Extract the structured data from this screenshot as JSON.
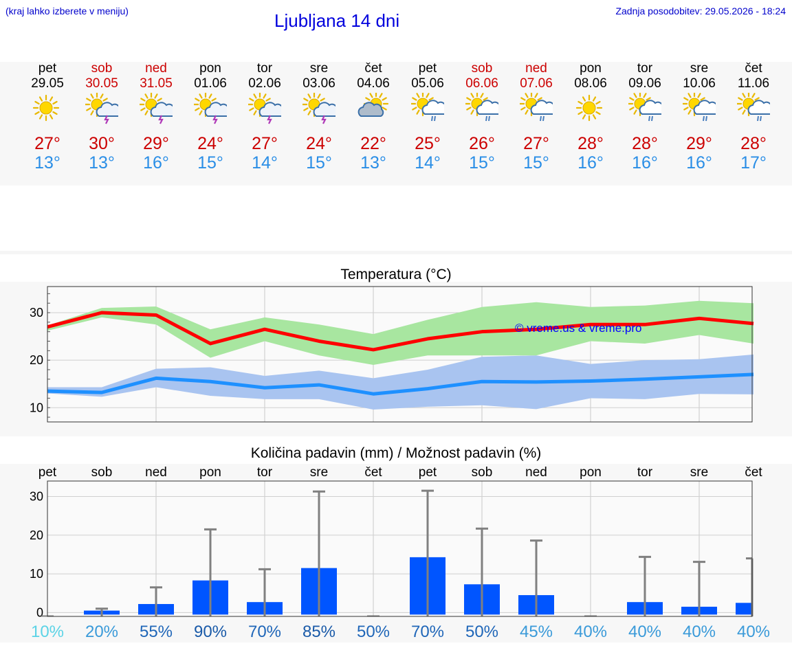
{
  "header": {
    "hint": "(kraj lahko izberete v meniju)",
    "title": "Ljubljana 14 dni",
    "last_update": "Zadnja posodobitev: 29.05.2026 - 18:24"
  },
  "colors": {
    "weekday": "#000000",
    "weekend": "#cc0000",
    "tmax_line": "#ff0000",
    "tmax_band": "#a8e6a0",
    "tmin_line": "#1e90ff",
    "tmin_band": "#a9c4f0",
    "precip_bar": "#0055ff",
    "error_bar": "#808080"
  },
  "days": [
    {
      "name": "pet",
      "date": "29.05",
      "weekend": false,
      "icon": "sun-icon",
      "tmax": "27°",
      "tmin": "13°"
    },
    {
      "name": "sob",
      "date": "30.05",
      "weekend": true,
      "icon": "sun-cloud-thunder-icon",
      "tmax": "30°",
      "tmin": "13°"
    },
    {
      "name": "ned",
      "date": "31.05",
      "weekend": true,
      "icon": "sun-cloud-thunder-icon",
      "tmax": "29°",
      "tmin": "16°"
    },
    {
      "name": "pon",
      "date": "01.06",
      "weekend": false,
      "icon": "sun-cloud-thunder-icon",
      "tmax": "24°",
      "tmin": "15°"
    },
    {
      "name": "tor",
      "date": "02.06",
      "weekend": false,
      "icon": "sun-cloud-thunder-icon",
      "tmax": "27°",
      "tmin": "14°"
    },
    {
      "name": "sre",
      "date": "03.06",
      "weekend": false,
      "icon": "sun-cloud-thunder-icon",
      "tmax": "24°",
      "tmin": "15°"
    },
    {
      "name": "čet",
      "date": "04.06",
      "weekend": false,
      "icon": "sun-behind-cloud-icon",
      "tmax": "22°",
      "tmin": "13°"
    },
    {
      "name": "pet",
      "date": "05.06",
      "weekend": false,
      "icon": "sun-cloud-rain-icon",
      "tmax": "25°",
      "tmin": "14°"
    },
    {
      "name": "sob",
      "date": "06.06",
      "weekend": true,
      "icon": "sun-cloud-rain-icon",
      "tmax": "26°",
      "tmin": "15°"
    },
    {
      "name": "ned",
      "date": "07.06",
      "weekend": true,
      "icon": "sun-cloud-rain-icon",
      "tmax": "27°",
      "tmin": "15°"
    },
    {
      "name": "pon",
      "date": "08.06",
      "weekend": false,
      "icon": "sun-icon",
      "tmax": "28°",
      "tmin": "16°"
    },
    {
      "name": "tor",
      "date": "09.06",
      "weekend": false,
      "icon": "sun-cloud-rain-icon",
      "tmax": "28°",
      "tmin": "16°"
    },
    {
      "name": "sre",
      "date": "10.06",
      "weekend": false,
      "icon": "sun-cloud-rain-icon",
      "tmax": "29°",
      "tmin": "16°"
    },
    {
      "name": "čet",
      "date": "11.06",
      "weekend": false,
      "icon": "sun-cloud-rain-icon",
      "tmax": "28°",
      "tmin": "17°"
    }
  ],
  "chart_data": [
    {
      "type": "line",
      "title": "Temperatura (°C)",
      "watermark": "© vreme.us & vreme.pro",
      "ylim": [
        7,
        35.5
      ],
      "yticks": [
        10,
        20,
        30
      ],
      "grid": true,
      "series": [
        {
          "key": "tmax",
          "values": [
            27,
            30,
            29.5,
            23.5,
            26.5,
            24,
            22.2,
            24.5,
            26,
            26.5,
            27.5,
            27.5,
            28.8,
            27.7
          ],
          "band_low": [
            26.2,
            29,
            27.5,
            20.5,
            24,
            21,
            19,
            21,
            21,
            21,
            24,
            23.5,
            25.3,
            23.5
          ],
          "band_high": [
            27.3,
            31,
            31.3,
            26.5,
            29,
            27.5,
            25.5,
            28.5,
            31.2,
            32.2,
            31.2,
            31.5,
            32.5,
            32
          ]
        },
        {
          "key": "tmin",
          "values": [
            13.5,
            13.2,
            16.2,
            15.5,
            14.2,
            14.8,
            12.9,
            14,
            15.5,
            15.4,
            15.6,
            16,
            16.5,
            17
          ],
          "band_low": [
            13,
            12.3,
            14.3,
            12.5,
            11.8,
            11.8,
            9.6,
            10.2,
            10.5,
            9.7,
            12,
            11.8,
            12.9,
            12.8
          ],
          "band_high": [
            14.3,
            14.3,
            18.2,
            18.5,
            16.7,
            17.8,
            16.2,
            18,
            20.7,
            21,
            19.2,
            20,
            20.2,
            21.2
          ]
        }
      ]
    },
    {
      "type": "bar",
      "title": "Količina padavin (mm) / Možnost padavin (%)",
      "categories": [
        "pet",
        "sob",
        "ned",
        "pon",
        "tor",
        "sre",
        "čet",
        "pet",
        "sob",
        "ned",
        "pon",
        "tor",
        "sre",
        "čet"
      ],
      "ylim": [
        -1,
        34
      ],
      "yticks": [
        0,
        10,
        20,
        30
      ],
      "grid": true,
      "values": [
        0,
        0.5,
        2.2,
        8.3,
        2.7,
        11.5,
        0,
        14.3,
        7.3,
        4.5,
        0,
        2.7,
        1.5,
        2.5
      ],
      "error_high": [
        0,
        1,
        6.5,
        21.5,
        11.2,
        31.3,
        0,
        31.5,
        21.7,
        18.6,
        0,
        14.4,
        13.1,
        14
      ],
      "probability": [
        "10%",
        "20%",
        "55%",
        "90%",
        "70%",
        "85%",
        "50%",
        "70%",
        "50%",
        "45%",
        "40%",
        "40%",
        "40%",
        "40%"
      ],
      "probability_colors": [
        "#5bd3e6",
        "#3a9ad9",
        "#1f66b8",
        "#1a5aa8",
        "#1f66b8",
        "#1a5aa8",
        "#1f66b8",
        "#1f66b8",
        "#1f66b8",
        "#3a9ad9",
        "#3a9ad9",
        "#3a9ad9",
        "#3a9ad9",
        "#3a9ad9"
      ]
    }
  ]
}
